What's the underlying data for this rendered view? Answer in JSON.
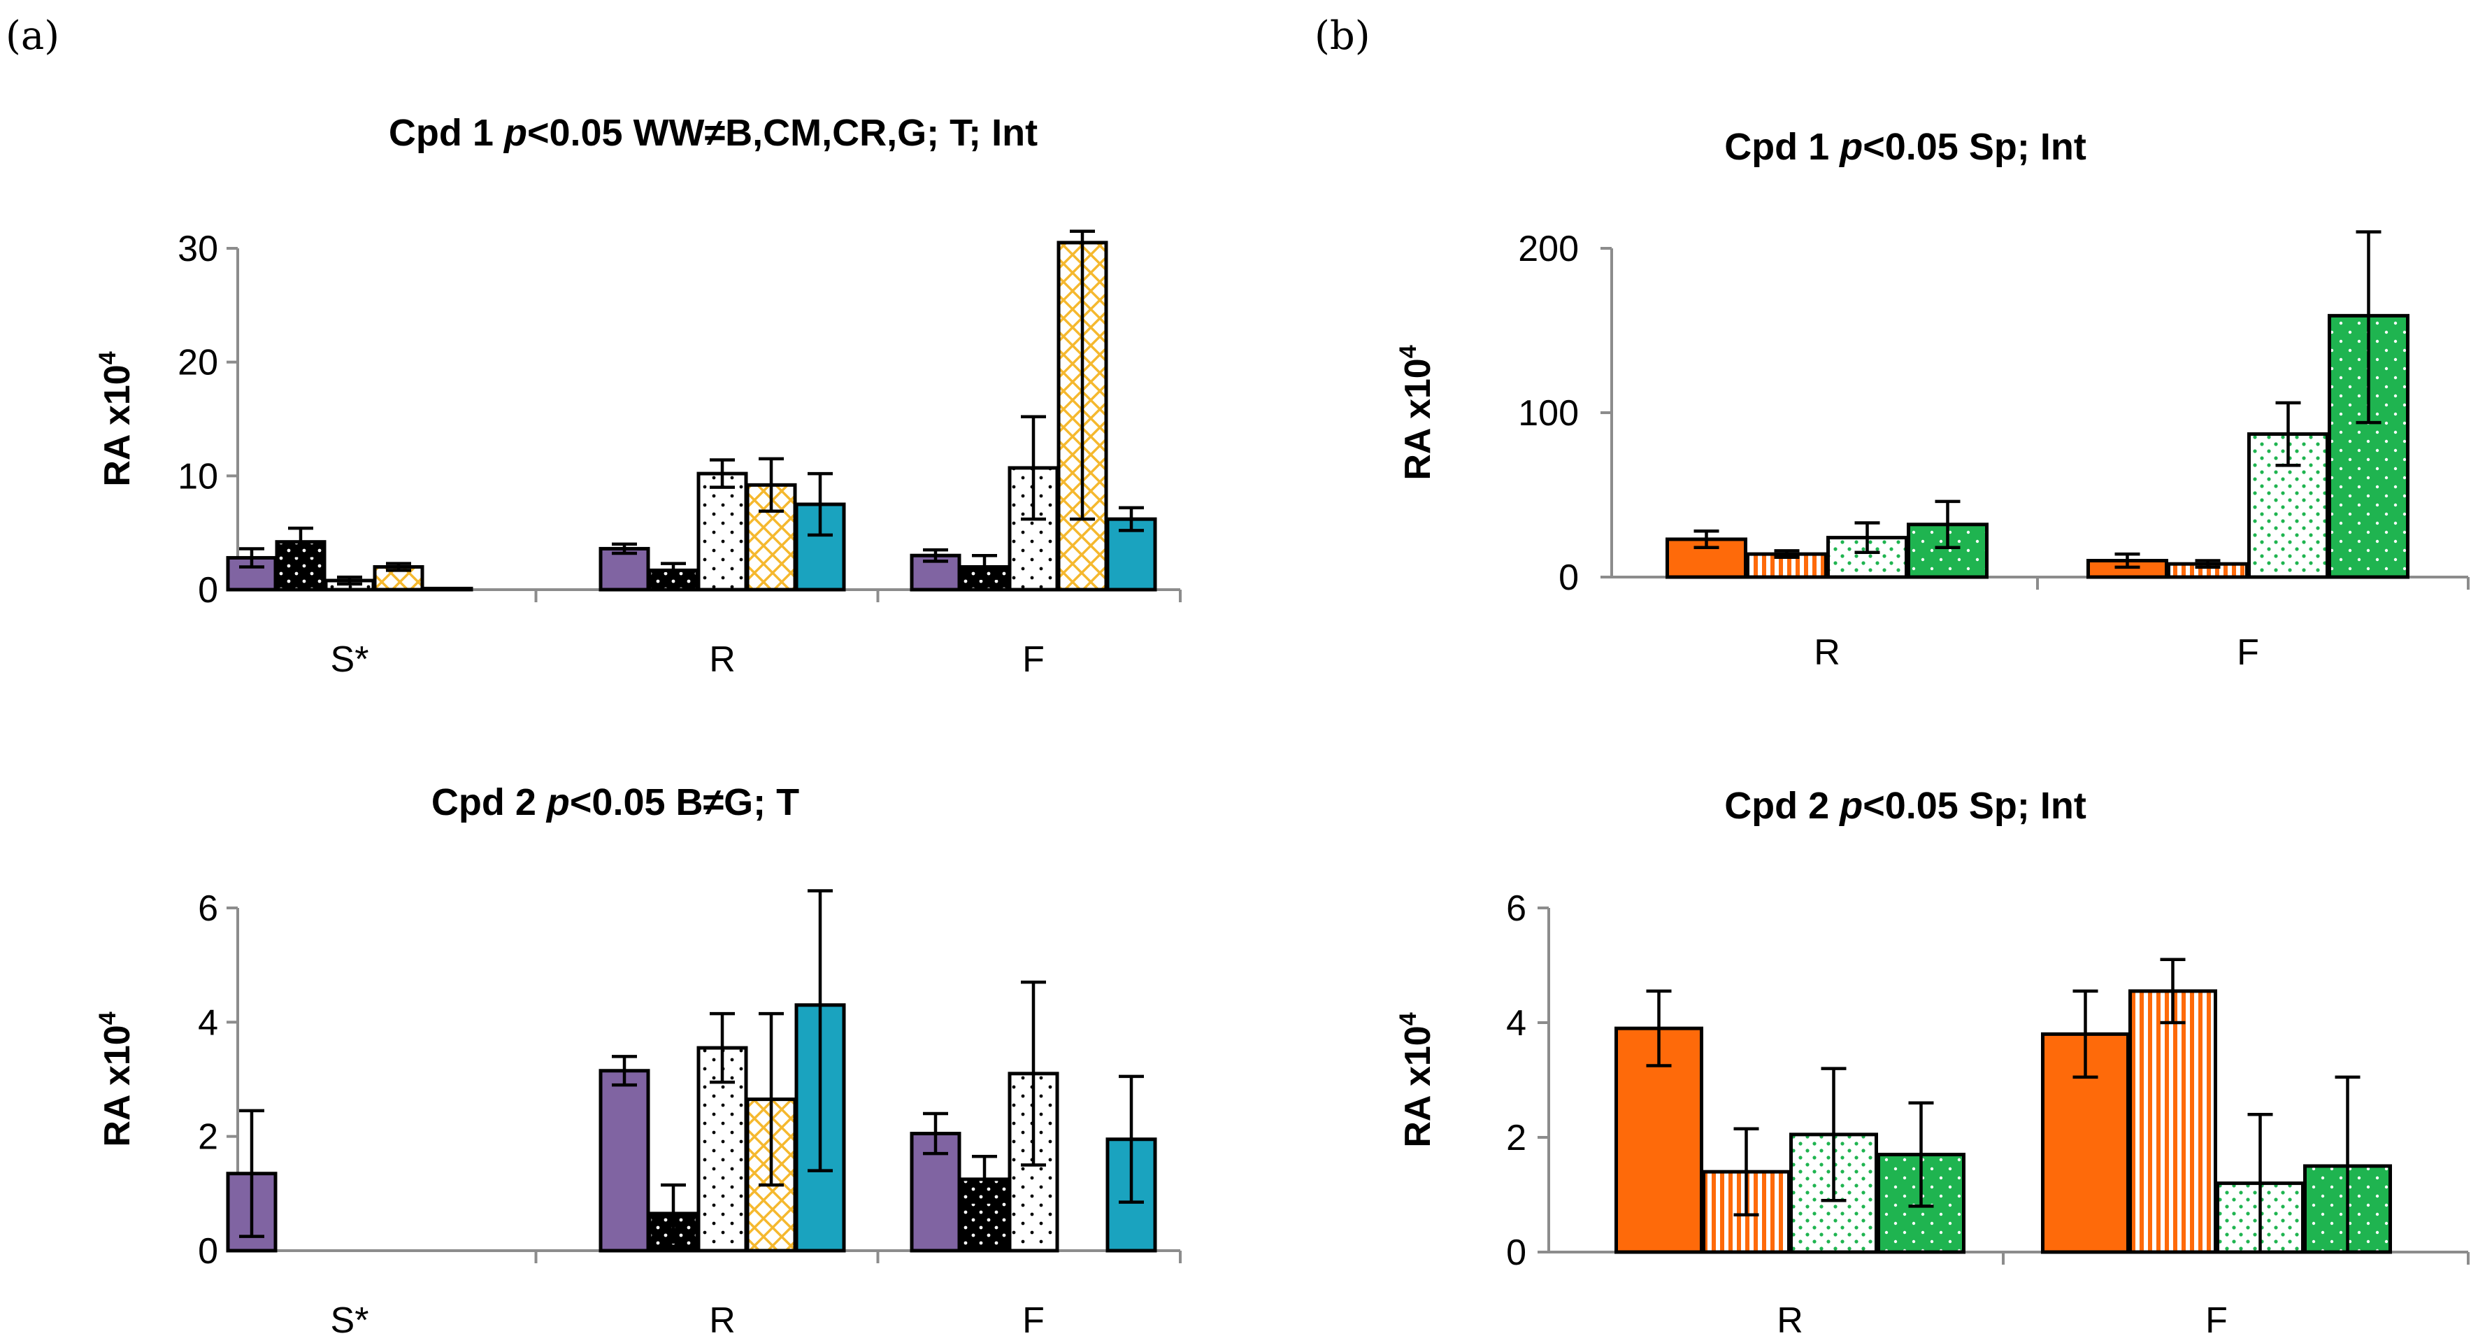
{
  "panels": [
    {
      "label": "(a)"
    },
    {
      "label": "(b)"
    }
  ],
  "colors": {
    "purple": "#8064a2",
    "black": "#000000",
    "white": "#ffffff",
    "gold": "#f5b82e",
    "teal": "#1aa3bf",
    "orange": "#fe6a0a",
    "green": "#1fb450",
    "axis": "#8c8c8c"
  },
  "chart_data": [
    {
      "id": "a-top",
      "type": "bar",
      "title": {
        "pre": "Cpd 1  ",
        "italic": "p",
        "post": "<0.05 WW≠B,CM,CR,G; T; Int"
      },
      "ylabel": "RA x10",
      "ylabel_sup": "4",
      "ylim": [
        0,
        30
      ],
      "yticks": [
        "0",
        "10",
        "20",
        "30"
      ],
      "yticks_values": [
        0,
        10,
        20,
        30
      ],
      "categories": [
        "S*",
        "R",
        "F"
      ],
      "series": [
        {
          "name": "s1",
          "fill": "solid",
          "color": "#8064a2",
          "values": [
            2.8,
            3.6,
            3.0
          ],
          "errors": [
            0.8,
            0.4,
            0.5
          ]
        },
        {
          "name": "s2",
          "fill": "dots-light",
          "color": "#000000",
          "values": [
            4.2,
            1.7,
            2.0
          ],
          "errors": [
            1.2,
            0.6,
            1.0
          ]
        },
        {
          "name": "s3",
          "fill": "dots-dark",
          "color": "#ffffff",
          "values": [
            0.8,
            10.2,
            10.7
          ],
          "errors": [
            0.3,
            1.2,
            4.5
          ]
        },
        {
          "name": "s4",
          "fill": "crosshatch",
          "color": "#f5b82e",
          "values": [
            2.0,
            9.2,
            30.5
          ],
          "errors": [
            0.3,
            2.3,
            24.3
          ]
        },
        {
          "name": "s5",
          "fill": "solid",
          "color": "#1aa3bf",
          "values": [
            0.1,
            7.5,
            6.2
          ],
          "errors": [
            0,
            2.7,
            1.0
          ]
        }
      ]
    },
    {
      "id": "a-bottom",
      "type": "bar",
      "title": {
        "pre": "Cpd 2 ",
        "italic": "p",
        "post": "<0.05 B≠G; T"
      },
      "ylabel": "RA x10",
      "ylabel_sup": "4",
      "ylim": [
        0,
        6
      ],
      "yticks": [
        "0",
        "2",
        "4",
        "6"
      ],
      "yticks_values": [
        0,
        2,
        4,
        6
      ],
      "categories": [
        "S*",
        "R",
        "F"
      ],
      "series": [
        {
          "name": "s1",
          "fill": "solid",
          "color": "#8064a2",
          "values": [
            1.35,
            3.15,
            2.05
          ],
          "errors": [
            1.1,
            0.25,
            0.35
          ]
        },
        {
          "name": "s2",
          "fill": "dots-light",
          "color": "#000000",
          "values": [
            0,
            0.65,
            1.25
          ],
          "errors": [
            0,
            0.5,
            0.4
          ]
        },
        {
          "name": "s3",
          "fill": "dots-dark",
          "color": "#ffffff",
          "values": [
            0,
            3.55,
            3.1
          ],
          "errors": [
            0,
            0.6,
            1.6
          ]
        },
        {
          "name": "s4",
          "fill": "crosshatch",
          "color": "#f5b82e",
          "values": [
            0,
            2.65,
            0
          ],
          "errors": [
            0,
            1.5,
            0
          ]
        },
        {
          "name": "s5",
          "fill": "solid",
          "color": "#1aa3bf",
          "values": [
            0,
            4.3,
            1.95
          ],
          "errors": [
            0,
            2.9,
            1.1
          ]
        }
      ]
    },
    {
      "id": "b-top",
      "type": "bar",
      "title": {
        "pre": "Cpd 1 ",
        "italic": "p",
        "post": "<0.05 Sp; Int"
      },
      "ylabel": "RA x10",
      "ylabel_sup": "4",
      "ylim": [
        0,
        200
      ],
      "yticks": [
        "0",
        "100",
        "200"
      ],
      "yticks_values": [
        0,
        100,
        200
      ],
      "categories": [
        "R",
        "F"
      ],
      "series": [
        {
          "name": "s1",
          "fill": "solid",
          "color": "#fe6a0a",
          "values": [
            23,
            10
          ],
          "errors": [
            5,
            4
          ]
        },
        {
          "name": "s2",
          "fill": "vstripes",
          "color": "#fe6a0a",
          "values": [
            14,
            8
          ],
          "errors": [
            2,
            2
          ]
        },
        {
          "name": "s3",
          "fill": "dots-green",
          "color": "#1fb450",
          "values": [
            24,
            87
          ],
          "errors": [
            9,
            19
          ]
        },
        {
          "name": "s4",
          "fill": "dots-on-green",
          "color": "#1fb450",
          "values": [
            32,
            159
          ],
          "errors": [
            14,
            65
          ]
        }
      ]
    },
    {
      "id": "b-bottom",
      "type": "bar",
      "title": {
        "pre": "Cpd 2 ",
        "italic": "p",
        "post": "<0.05 Sp; Int"
      },
      "ylabel": "RA x10",
      "ylabel_sup": "4",
      "ylim": [
        0,
        6
      ],
      "yticks": [
        "0",
        "2",
        "4",
        "6"
      ],
      "yticks_values": [
        0,
        2,
        4,
        6
      ],
      "categories": [
        "R",
        "F"
      ],
      "series": [
        {
          "name": "s1",
          "fill": "solid",
          "color": "#fe6a0a",
          "values": [
            3.9,
            3.8
          ],
          "errors": [
            0.65,
            0.75
          ]
        },
        {
          "name": "s2",
          "fill": "vstripes",
          "color": "#fe6a0a",
          "values": [
            1.4,
            4.55
          ],
          "errors": [
            0.75,
            0.55
          ]
        },
        {
          "name": "s3",
          "fill": "dots-green",
          "color": "#1fb450",
          "values": [
            2.05,
            1.2
          ],
          "errors": [
            1.15,
            1.2
          ]
        },
        {
          "name": "s4",
          "fill": "dots-on-green",
          "color": "#1fb450",
          "values": [
            1.7,
            1.5
          ],
          "errors": [
            0.9,
            1.55
          ]
        }
      ]
    }
  ]
}
